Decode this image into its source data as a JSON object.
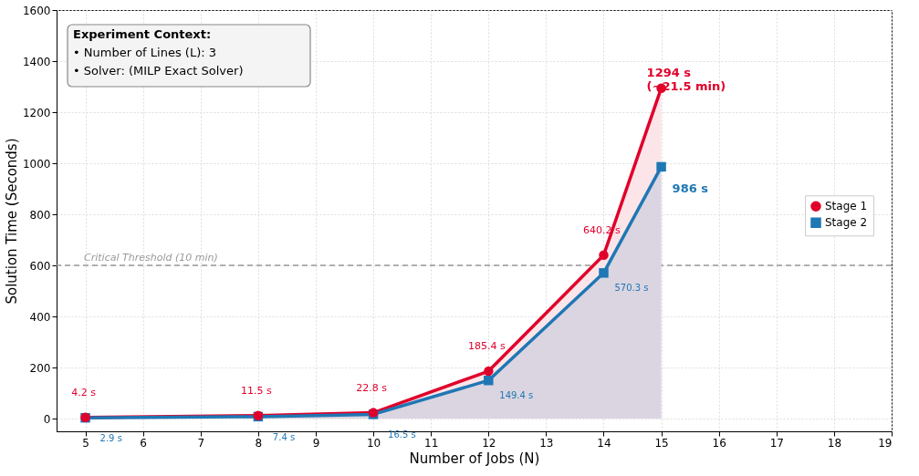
{
  "chart_data": {
    "type": "area",
    "xlabel": "Number of Jobs (N)",
    "ylabel": "Solution Time (Seconds)",
    "x": [
      5,
      8,
      10,
      12,
      14,
      15
    ],
    "series": [
      {
        "name": "Stage 1",
        "color": "#e0002a",
        "marker": "circle",
        "values": [
          4.2,
          11.5,
          22.8,
          185.4,
          640.2,
          1294
        ],
        "value_labels": [
          "4.2 s",
          "11.5 s",
          "22.8 s",
          "185.4 s",
          "640.2 s",
          "1294 s\n(~21.5 min)"
        ]
      },
      {
        "name": "Stage 2",
        "color": "#1f77b4",
        "marker": "square",
        "values": [
          2.9,
          7.4,
          16.5,
          149.4,
          570.3,
          986
        ],
        "value_labels": [
          "2.9 s",
          "7.4 s",
          "16.5 s",
          "149.4 s",
          "570.3 s",
          "986 s"
        ]
      }
    ],
    "xlim": [
      4.5,
      19
    ],
    "xticks": [
      5,
      6,
      7,
      8,
      9,
      10,
      11,
      12,
      13,
      14,
      15,
      16,
      17,
      18,
      19
    ],
    "ylim": [
      -50,
      1600
    ],
    "yticks": [
      0,
      200,
      400,
      600,
      800,
      1000,
      1200,
      1400,
      1600
    ],
    "ref_lines": [
      {
        "axis": "y",
        "value": 600,
        "label": "Critical Threshold (10 min)",
        "color": "#999999",
        "line_style": "dashed"
      }
    ],
    "annotations": [
      "Experiment Context:",
      "• Number of Lines (L): 3",
      "• Solver: (MILP Exact Solver)"
    ],
    "grid": true,
    "legend": "right",
    "line_style": "solid"
  }
}
